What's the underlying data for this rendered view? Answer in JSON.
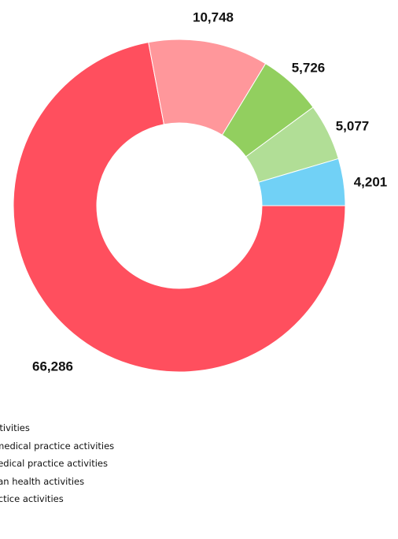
{
  "chart_data": {
    "type": "pie",
    "donut": true,
    "title": "",
    "categories": [
      "Hospital activities",
      "Specialist medical practice activities",
      "General medical practice activities",
      "Other human health activities",
      "Dental practice activities"
    ],
    "legend_visible_text": [
      "activities",
      "t medical practice activities",
      "medical practice activities",
      "man health activities",
      "ractice activities"
    ],
    "values": [
      66286,
      10748,
      5726,
      5077,
      4201
    ],
    "value_labels": [
      "66,286",
      "10,748",
      "5,726",
      "5,077",
      "4,201"
    ],
    "colors": [
      "#ff4f5e",
      "#ff979b",
      "#92cf5f",
      "#b1de96",
      "#71d1f6"
    ],
    "legend_position": "bottom-left"
  }
}
